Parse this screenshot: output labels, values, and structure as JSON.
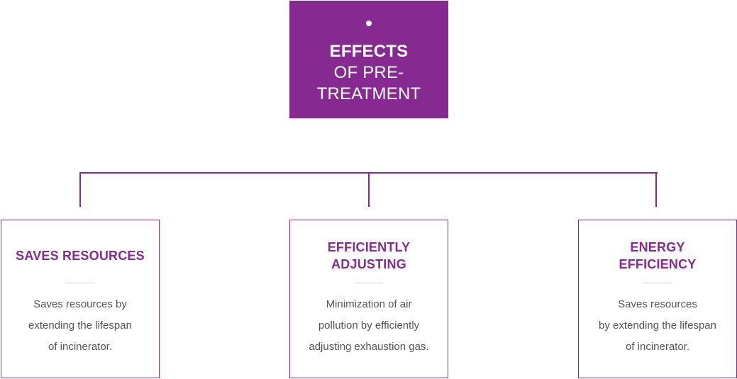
{
  "colors": {
    "accent": "#862a92",
    "divider": "#cccccc",
    "body_text": "#555555"
  },
  "root": {
    "title_strong": "EFFECTS",
    "title_line2": "OF PRE-",
    "title_line3": "TREATMENT"
  },
  "cards": [
    {
      "title_line1": "SAVES RESOURCES",
      "title_line2": "",
      "desc_line1": "Saves resources by",
      "desc_line2": "extending the lifespan",
      "desc_line3": "of incinerator."
    },
    {
      "title_line1": "EFFICIENTLY",
      "title_line2": "ADJUSTING",
      "desc_line1": "Minimization of air",
      "desc_line2": "pollution by efficiently",
      "desc_line3": "adjusting exhaustion gas."
    },
    {
      "title_line1": "ENERGY",
      "title_line2": "EFFICIENCY",
      "desc_line1": "Saves resources",
      "desc_line2": "by extending the lifespan",
      "desc_line3": "of incinerator."
    }
  ]
}
